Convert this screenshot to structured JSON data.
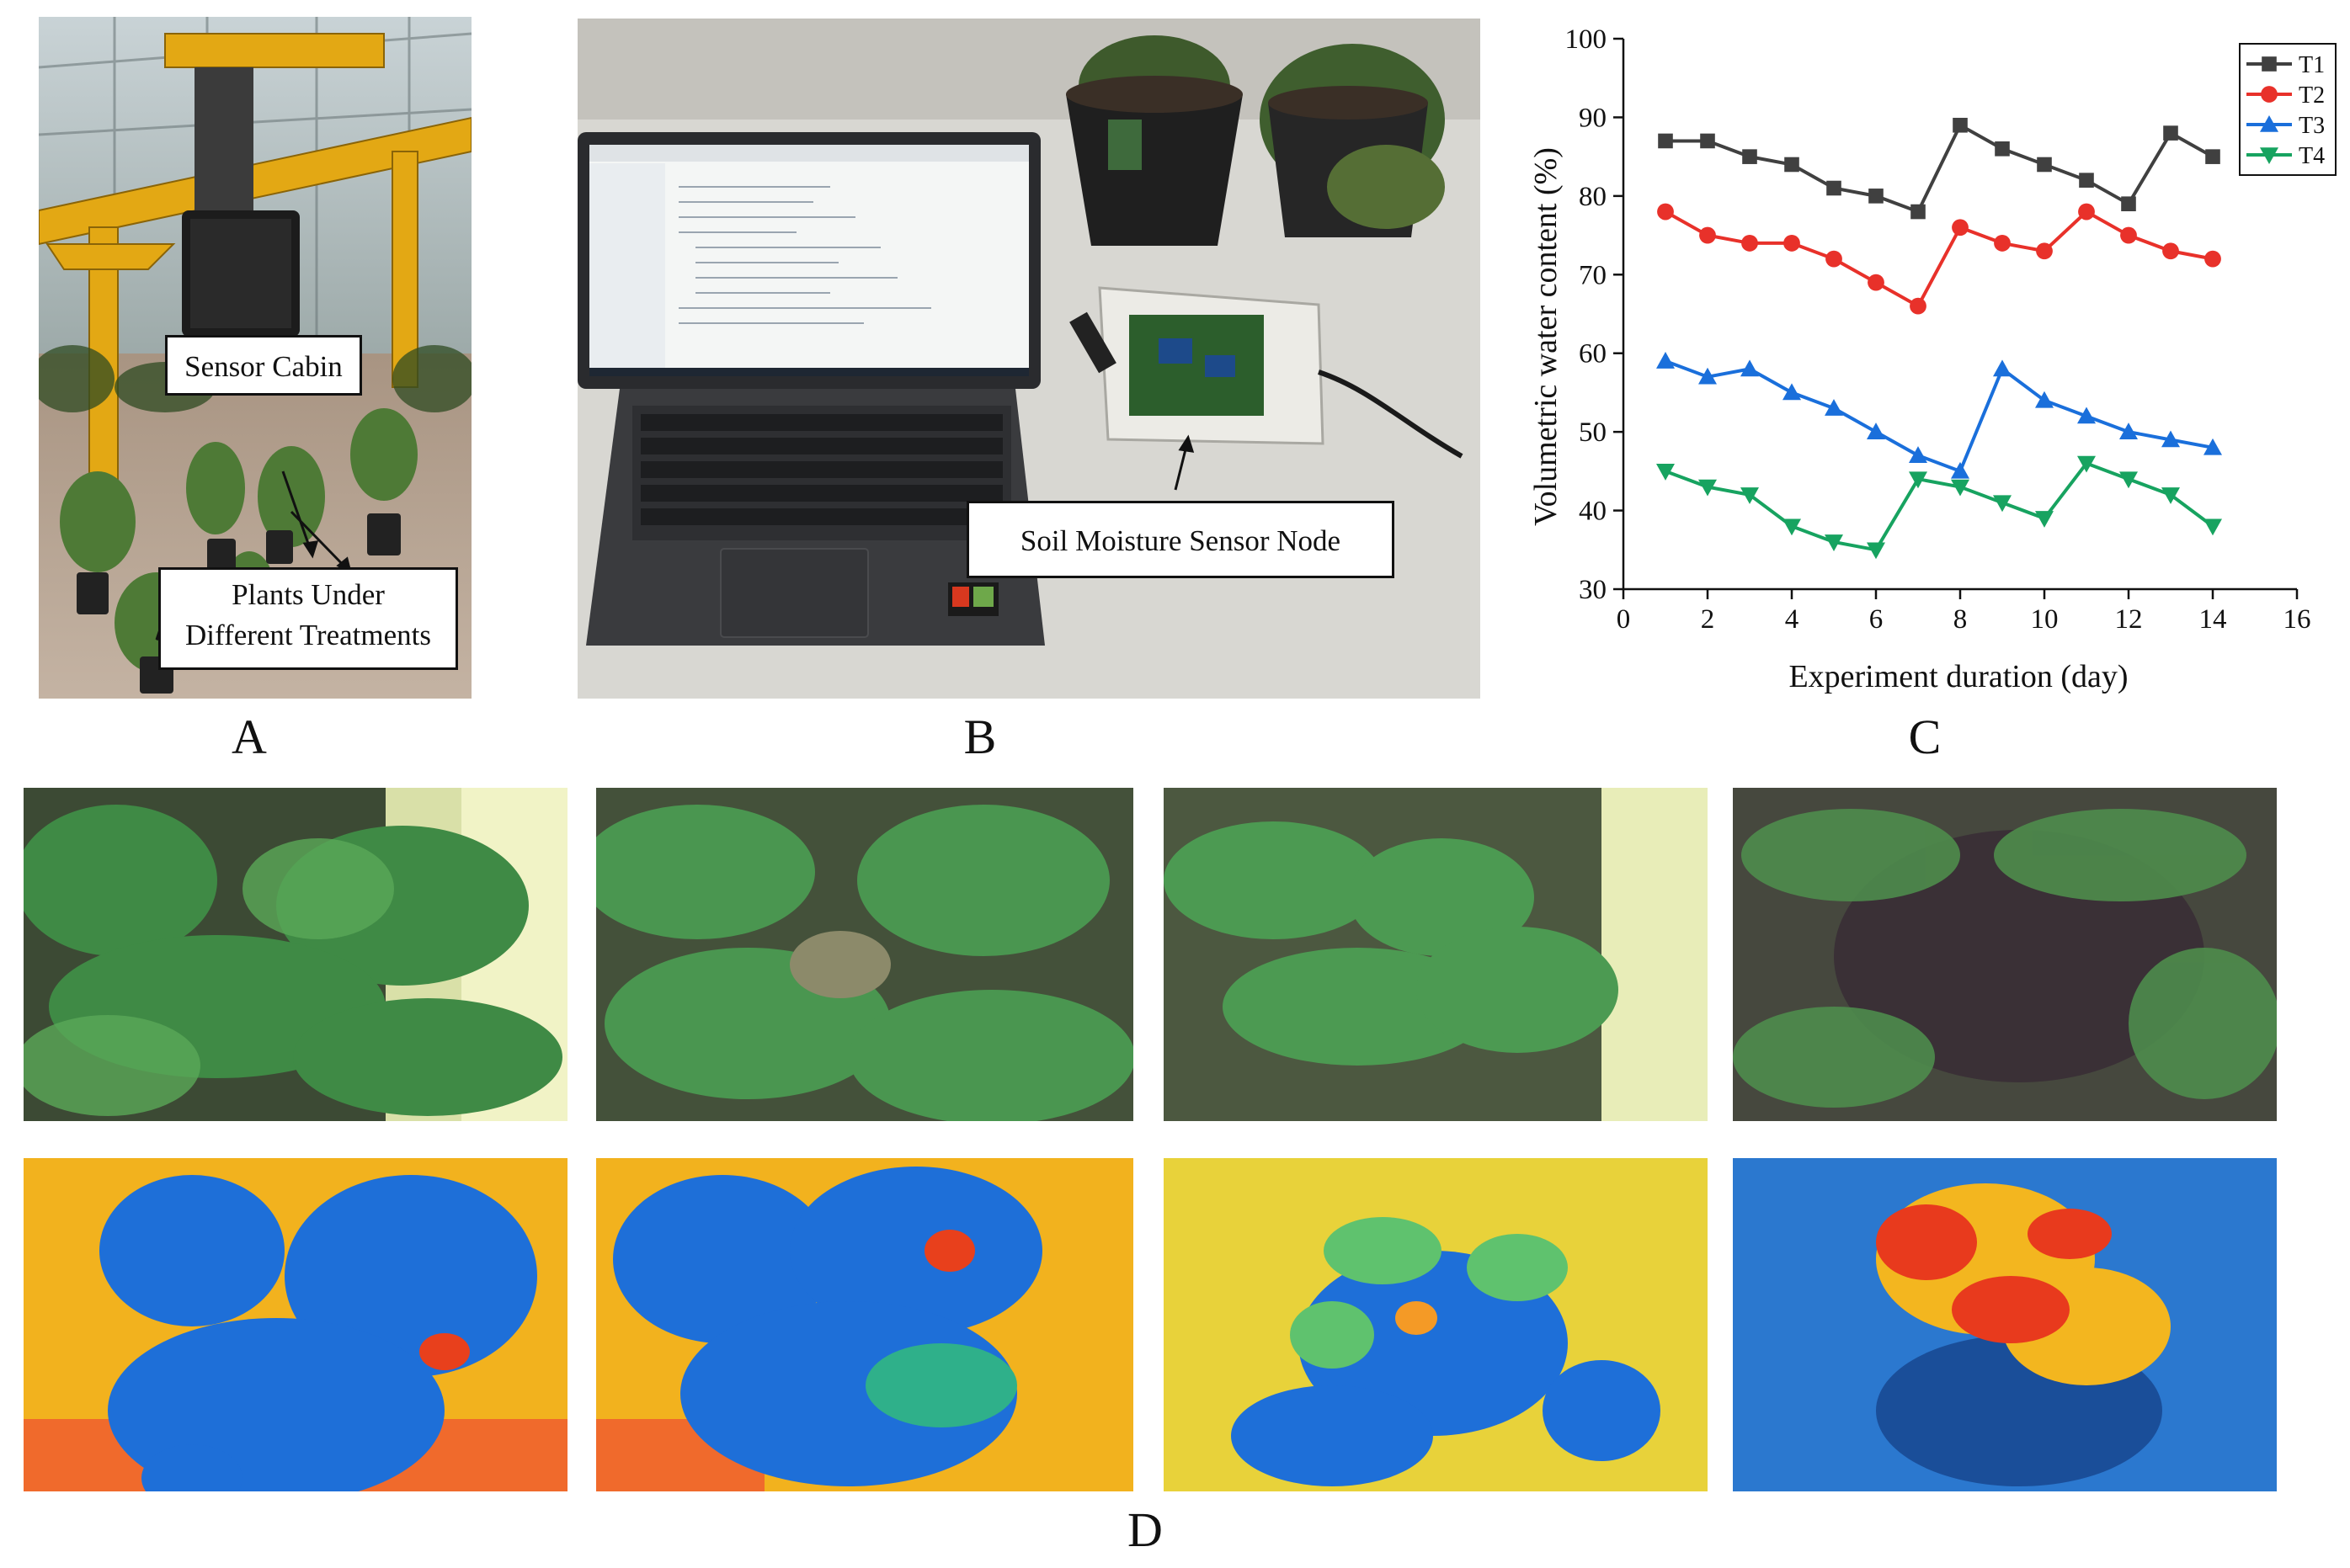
{
  "panels": {
    "a": {
      "letter": "A",
      "labels": {
        "cabin": "Sensor Cabin",
        "plants_line1": "Plants Under",
        "plants_line2": "Different Treatments"
      }
    },
    "b": {
      "letter": "B",
      "labels": {
        "node": "Soil Moisture Sensor Node"
      }
    },
    "c": {
      "letter": "C"
    },
    "d": {
      "letter": "D"
    }
  },
  "chart_data": {
    "type": "line",
    "title": "",
    "xlabel": "Experiment duration (day)",
    "ylabel": "Volumetric water content (%)",
    "xlim": [
      0,
      16
    ],
    "ylim": [
      30,
      100
    ],
    "xticks": [
      0,
      2,
      4,
      6,
      8,
      10,
      12,
      14,
      16
    ],
    "yticks": [
      30,
      40,
      50,
      60,
      70,
      80,
      90,
      100
    ],
    "x": [
      1,
      2,
      3,
      4,
      5,
      6,
      7,
      8,
      9,
      10,
      11,
      12,
      13,
      14
    ],
    "legend_position": "top-right",
    "grid": false,
    "series": [
      {
        "name": "T1",
        "color": "#404040",
        "marker": "square",
        "values": [
          87,
          87,
          85,
          84,
          81,
          80,
          78,
          89,
          86,
          84,
          82,
          79,
          88,
          85
        ]
      },
      {
        "name": "T2",
        "color": "#e8312a",
        "marker": "circle",
        "values": [
          78,
          75,
          74,
          74,
          72,
          69,
          66,
          76,
          74,
          73,
          78,
          75,
          73,
          72
        ]
      },
      {
        "name": "T3",
        "color": "#1a6fdb",
        "marker": "triangle",
        "values": [
          59,
          57,
          58,
          55,
          53,
          50,
          47,
          45,
          58,
          54,
          52,
          50,
          49,
          48
        ]
      },
      {
        "name": "T4",
        "color": "#17a360",
        "marker": "triangle-down",
        "values": [
          45,
          43,
          42,
          38,
          36,
          35,
          44,
          43,
          41,
          39,
          46,
          44,
          42,
          38
        ]
      }
    ]
  }
}
